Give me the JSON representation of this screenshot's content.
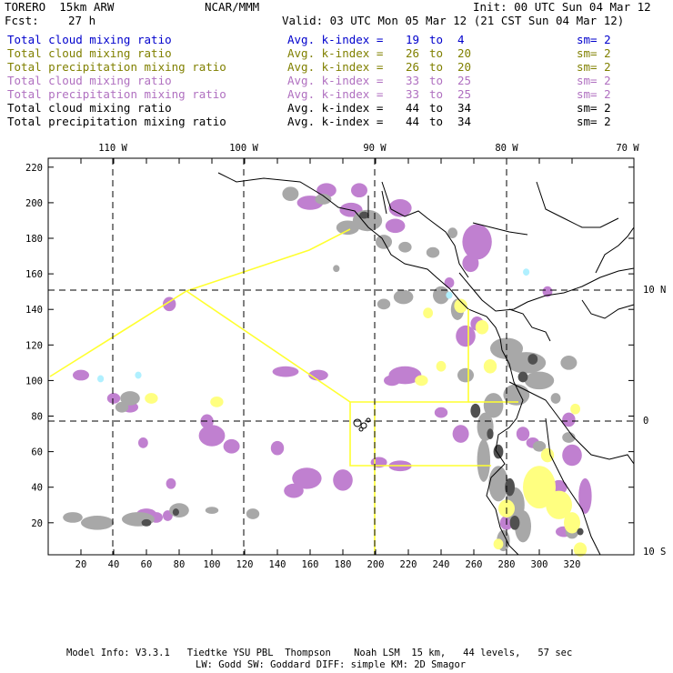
{
  "header": {
    "model": "TORERO  15km ARW",
    "org": "NCAR/MMM",
    "init": "Init: 00 UTC Sun 04 Mar 12",
    "fcst_label": "Fcst:",
    "fcst_value": "27 h",
    "valid": "Valid: 03 UTC Mon 05 Mar 12 (21 CST Sun 04 Mar 12)"
  },
  "legend": [
    {
      "field": "Total cloud mixing ratio",
      "avg": "Avg. k-index =",
      "k1": "19",
      "to": "to",
      "k2": "4",
      "sm": "sm= 2",
      "color": "#0000cc"
    },
    {
      "field": "Total cloud mixing ratio",
      "avg": "Avg. k-index =",
      "k1": "26",
      "to": "to",
      "k2": "20",
      "sm": "sm= 2",
      "color": "#808000"
    },
    {
      "field": "Total precipitation mixing ratio",
      "avg": "Avg. k-index =",
      "k1": "26",
      "to": "to",
      "k2": "20",
      "sm": "sm= 2",
      "color": "#808000"
    },
    {
      "field": "Total cloud mixing ratio",
      "avg": "Avg. k-index =",
      "k1": "33",
      "to": "to",
      "k2": "25",
      "sm": "sm= 2",
      "color": "#b070c0"
    },
    {
      "field": "Total precipitation mixing ratio",
      "avg": "Avg. k-index =",
      "k1": "33",
      "to": "to",
      "k2": "25",
      "sm": "sm= 2",
      "color": "#b070c0"
    },
    {
      "field": "Total cloud mixing ratio",
      "avg": "Avg. k-index =",
      "k1": "44",
      "to": "to",
      "k2": "34",
      "sm": "sm= 2",
      "color": "#000000"
    },
    {
      "field": "Total precipitation mixing ratio",
      "avg": "Avg. k-index =",
      "k1": "44",
      "to": "to",
      "k2": "34",
      "sm": "sm= 2",
      "color": "#000000"
    }
  ],
  "map": {
    "lon_labels": [
      "110 W",
      "100 W",
      "90 W",
      "80 W",
      "70 W"
    ],
    "lat_labels": [
      "10 N",
      "0",
      "10 S"
    ],
    "x_ticks": [
      "20",
      "40",
      "60",
      "80",
      "100",
      "120",
      "140",
      "160",
      "180",
      "200",
      "220",
      "240",
      "260",
      "280",
      "300",
      "320"
    ],
    "y_ticks": [
      "20",
      "40",
      "60",
      "80",
      "100",
      "120",
      "140",
      "160",
      "180",
      "200",
      "220"
    ],
    "colors": {
      "purple": "#c080d0",
      "gray": "#a8a8a8",
      "dark": "#505050",
      "yellow": "#ffff80",
      "cyan": "#b0f0ff",
      "line": "#ffff30"
    }
  },
  "footer": {
    "line1": "Model Info: V3.3.1   Tiedtke YSU PBL  Thompson    Noah LSM  15 km,   44 levels,   57 sec",
    "line2": "LW: Godd SW: Goddard DIFF: simple KM: 2D Smagor"
  }
}
